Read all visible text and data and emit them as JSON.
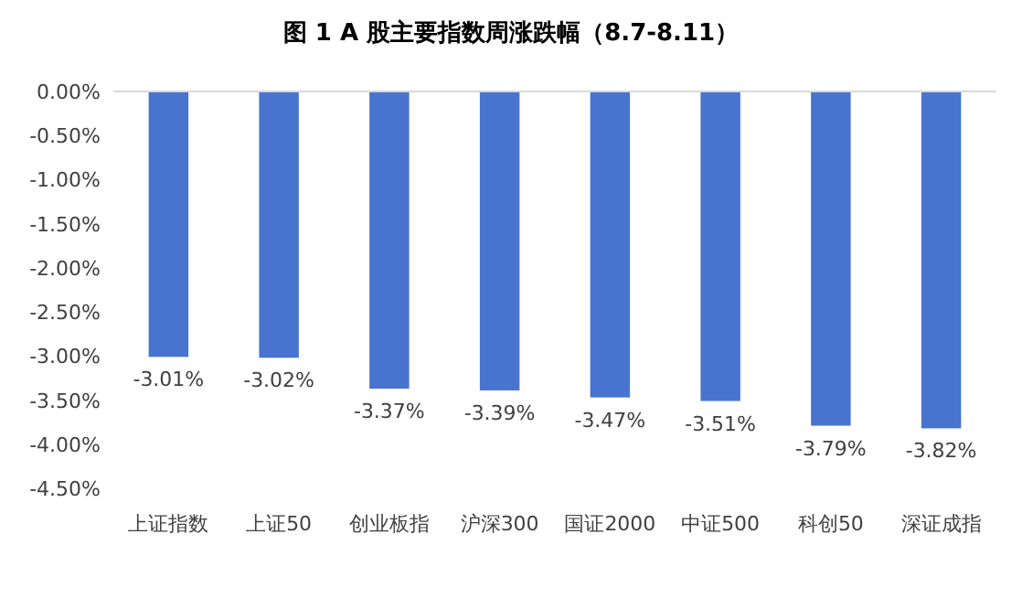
{
  "chart_data": {
    "type": "bar",
    "title": "图 1   A 股主要指数周涨跌幅（8.7-8.11）",
    "categories": [
      "上证指数",
      "上证50",
      "创业板指",
      "沪深300",
      "国证2000",
      "中证500",
      "科创50",
      "深证成指"
    ],
    "values": [
      -3.01,
      -3.02,
      -3.37,
      -3.39,
      -3.47,
      -3.51,
      -3.79,
      -3.82
    ],
    "color": "#4874cf",
    "ylim": [
      -4.5,
      0
    ],
    "yticks": [
      {
        "value": 0,
        "label": "0.00%"
      },
      {
        "value": -0.5,
        "label": "-0.50%"
      },
      {
        "value": -1,
        "label": "-1.00%"
      },
      {
        "value": -1.5,
        "label": "-1.50%"
      },
      {
        "value": -2,
        "label": "-2.00%"
      },
      {
        "value": -2.5,
        "label": "-2.50%"
      },
      {
        "value": -3,
        "label": "-3.00%"
      },
      {
        "value": -3.5,
        "label": "-3.50%"
      },
      {
        "value": -4,
        "label": "-4.00%"
      },
      {
        "value": -4.5,
        "label": "-4.50%"
      }
    ],
    "value_labels": [
      "-3.01%",
      "-3.02%",
      "-3.37%",
      "-3.39%",
      "-3.47%",
      "-3.51%",
      "-3.79%",
      "-3.82%"
    ]
  }
}
